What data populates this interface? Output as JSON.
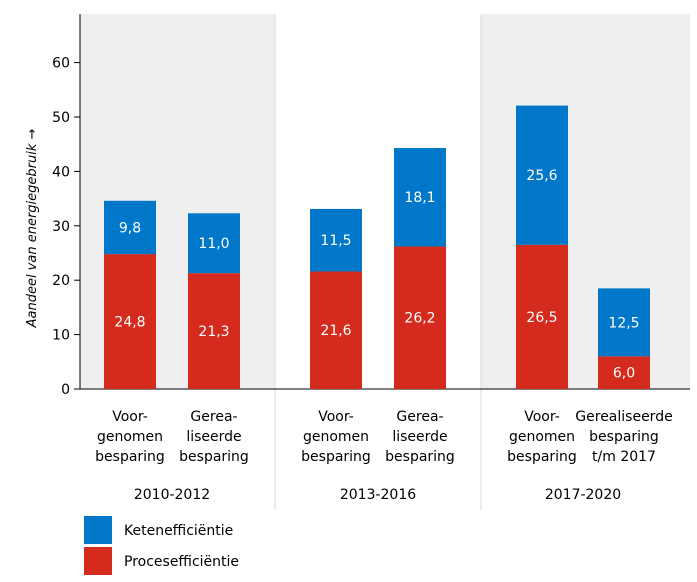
{
  "chart_data": {
    "type": "bar",
    "stacked": true,
    "ylabel": "Aandeel van energiegebruik →",
    "ylim": [
      0,
      65
    ],
    "yticks": [
      0,
      10,
      20,
      30,
      40,
      50,
      60
    ],
    "groups": [
      {
        "label": "2010-2012",
        "categories": [
          [
            "Voor-",
            "genomen",
            "besparing"
          ],
          [
            "Gerea-",
            "liseerde",
            "besparing"
          ]
        ]
      },
      {
        "label": "2013-2016",
        "categories": [
          [
            "Voor-",
            "genomen",
            "besparing"
          ],
          [
            "Gerea-",
            "liseerde",
            "besparing"
          ]
        ]
      },
      {
        "label": "2017-2020",
        "categories": [
          [
            "Voor-",
            "genomen",
            "besparing"
          ],
          [
            "Gerealiseerde",
            "besparing",
            "t/m 2017"
          ]
        ]
      }
    ],
    "series": [
      {
        "name": "Procesefficiëntie",
        "color": "#d52b1e",
        "values": [
          24.8,
          21.3,
          21.6,
          26.2,
          26.5,
          6.0
        ],
        "labels": [
          "24,8",
          "21,3",
          "21,6",
          "26,2",
          "26,5",
          "6,0"
        ]
      },
      {
        "name": "Ketenefficiëntie",
        "color": "#0077c8",
        "values": [
          9.8,
          11.0,
          11.5,
          18.1,
          25.6,
          12.5
        ],
        "labels": [
          "9,8",
          "11,0",
          "11,5",
          "18,1",
          "25,6",
          "12,5"
        ]
      }
    ],
    "legend": [
      {
        "name": "Ketenefficiëntie",
        "color": "#0077c8"
      },
      {
        "name": "Procesefficiëntie",
        "color": "#d52b1e"
      }
    ],
    "grid": false,
    "legend_position": "bottom-left",
    "group_background": "#efefef"
  }
}
